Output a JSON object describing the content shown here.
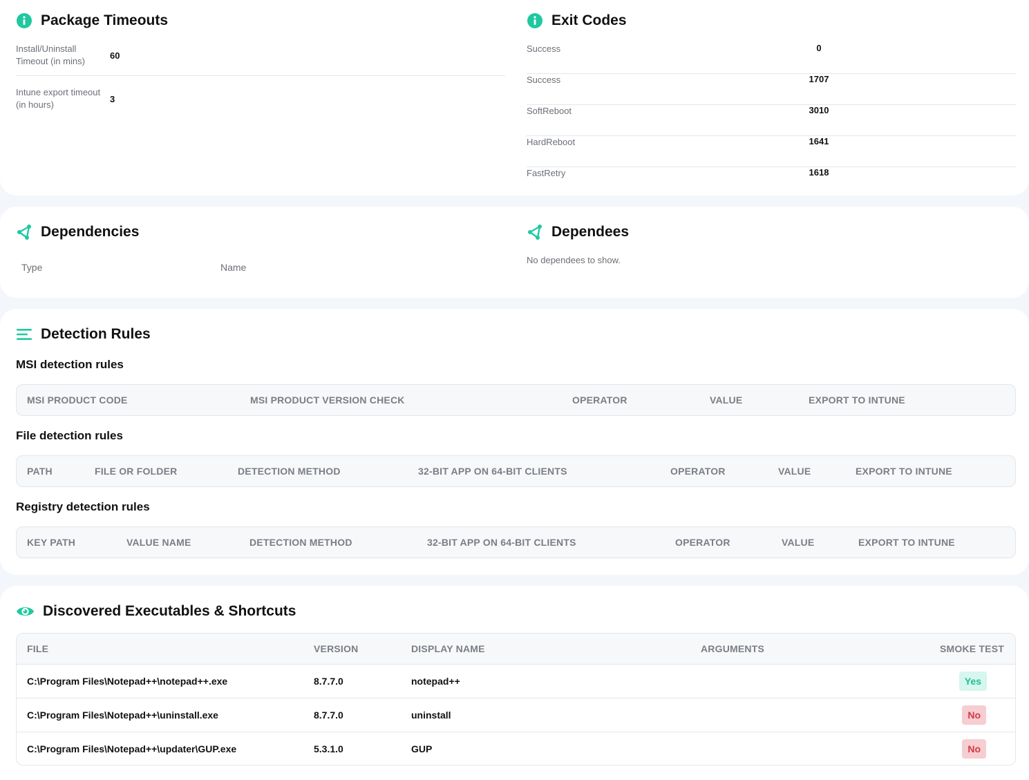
{
  "package_timeouts": {
    "title": "Package Timeouts",
    "rows": [
      {
        "label": "Install/Uninstall Timeout (in mins)",
        "value": "60"
      },
      {
        "label": "Intune export timeout (in hours)",
        "value": "3"
      }
    ]
  },
  "exit_codes": {
    "title": "Exit Codes",
    "rows": [
      {
        "label": "Success",
        "value": "0"
      },
      {
        "label": "Success",
        "value": "1707"
      },
      {
        "label": "SoftReboot",
        "value": "3010"
      },
      {
        "label": "HardReboot",
        "value": "1641"
      },
      {
        "label": "FastRetry",
        "value": "1618"
      }
    ]
  },
  "dependencies": {
    "title": "Dependencies",
    "columns": [
      "Type",
      "Name"
    ]
  },
  "dependees": {
    "title": "Dependees",
    "empty_text": "No dependees to show."
  },
  "detection_rules": {
    "title": "Detection Rules",
    "msi": {
      "title": "MSI detection rules",
      "columns": [
        "MSI PRODUCT CODE",
        "MSI PRODUCT VERSION CHECK",
        "OPERATOR",
        "VALUE",
        "EXPORT TO INTUNE"
      ]
    },
    "file": {
      "title": "File detection rules",
      "columns": [
        "PATH",
        "FILE OR FOLDER",
        "DETECTION METHOD",
        "32-BIT APP ON 64-BIT CLIENTS",
        "OPERATOR",
        "VALUE",
        "EXPORT TO INTUNE"
      ]
    },
    "registry": {
      "title": "Registry detection rules",
      "columns": [
        "KEY PATH",
        "VALUE NAME",
        "DETECTION METHOD",
        "32-BIT APP ON 64-BIT CLIENTS",
        "OPERATOR",
        "VALUE",
        "EXPORT TO INTUNE"
      ]
    }
  },
  "executables": {
    "title": "Discovered Executables & Shortcuts",
    "columns": [
      "FILE",
      "VERSION",
      "DISPLAY NAME",
      "ARGUMENTS",
      "SMOKE TEST"
    ],
    "rows": [
      {
        "file": "C:\\Program Files\\Notepad++\\notepad++.exe",
        "version": "8.7.7.0",
        "display_name": "notepad++",
        "arguments": "",
        "smoke_test": "Yes"
      },
      {
        "file": "C:\\Program Files\\Notepad++\\uninstall.exe",
        "version": "8.7.7.0",
        "display_name": "uninstall",
        "arguments": "",
        "smoke_test": "No"
      },
      {
        "file": "C:\\Program Files\\Notepad++\\updater\\GUP.exe",
        "version": "5.3.1.0",
        "display_name": "GUP",
        "arguments": "",
        "smoke_test": "No"
      }
    ]
  },
  "colors": {
    "accent": "#1fc9a0",
    "yes_bg": "#d6f6ee",
    "no_bg": "#f6cdd0"
  },
  "icons": {
    "package_timeouts": "info-icon",
    "exit_codes": "info-icon",
    "dependencies": "share-node-icon",
    "dependees": "share-node-icon",
    "detection_rules": "list-lines-icon",
    "executables": "eye-icon"
  }
}
